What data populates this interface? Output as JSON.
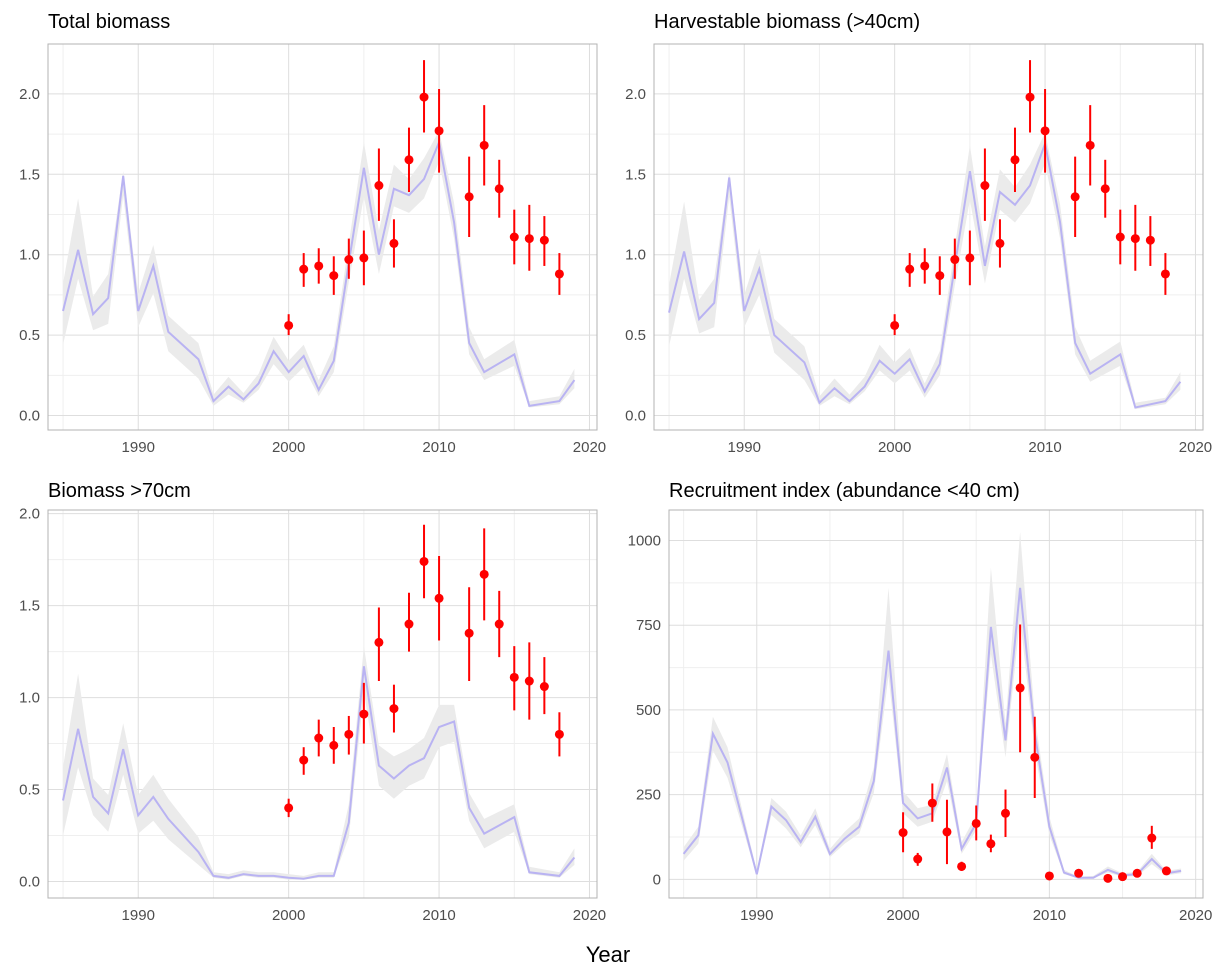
{
  "figure": {
    "xlabel": "Year"
  },
  "colors": {
    "model_line": "#b9b3f2",
    "ribbon": "#ebebeb",
    "observed": "#ff0000",
    "grid_major": "#dedede",
    "grid_minor": "#efefef",
    "panel_border": "#b3b3b3"
  },
  "chart_data": [
    {
      "type": "line",
      "title": "Total biomass",
      "xlabel": "Year",
      "ylabel": "",
      "xlim": [
        1984,
        2020.5
      ],
      "ylim": [
        -0.09,
        2.31
      ],
      "xticks": [
        1990,
        2000,
        2010,
        2020
      ],
      "yticks": [
        0.0,
        0.5,
        1.0,
        1.5,
        2.0
      ],
      "ytick_labels": [
        "0.0",
        "0.5",
        "1.0",
        "1.5",
        "2.0"
      ],
      "grid": true,
      "model": {
        "x": [
          1985,
          1986,
          1987,
          1988,
          1989,
          1990,
          1991,
          1992,
          1994,
          1995,
          1996,
          1997,
          1998,
          1999,
          2000,
          2001,
          2002,
          2003,
          2004,
          2005,
          2006,
          2007,
          2008,
          2009,
          2010,
          2011,
          2012,
          2013,
          2015,
          2016,
          2018,
          2019
        ],
        "y": [
          0.65,
          1.03,
          0.63,
          0.73,
          1.49,
          0.65,
          0.93,
          0.52,
          0.35,
          0.09,
          0.18,
          0.1,
          0.2,
          0.4,
          0.27,
          0.37,
          0.16,
          0.34,
          0.95,
          1.54,
          1.0,
          1.41,
          1.37,
          1.47,
          1.7,
          1.2,
          0.45,
          0.27,
          0.38,
          0.06,
          0.09,
          0.22
        ],
        "lower": [
          0.44,
          0.85,
          0.53,
          0.57,
          1.37,
          0.55,
          0.76,
          0.4,
          0.23,
          0.06,
          0.13,
          0.08,
          0.16,
          0.32,
          0.21,
          0.3,
          0.12,
          0.27,
          0.83,
          1.36,
          0.88,
          1.3,
          1.26,
          1.35,
          1.58,
          1.1,
          0.38,
          0.22,
          0.31,
          0.05,
          0.07,
          0.17
        ],
        "upper": [
          0.82,
          1.35,
          0.74,
          0.88,
          1.52,
          0.76,
          1.06,
          0.62,
          0.45,
          0.13,
          0.24,
          0.14,
          0.26,
          0.49,
          0.34,
          0.44,
          0.22,
          0.43,
          1.07,
          1.7,
          1.15,
          1.56,
          1.47,
          1.6,
          1.77,
          1.32,
          0.55,
          0.35,
          0.47,
          0.09,
          0.12,
          0.29
        ]
      },
      "observed": {
        "x": [
          2000,
          2001,
          2002,
          2003,
          2004,
          2005,
          2006,
          2007,
          2008,
          2009,
          2010,
          2012,
          2013,
          2014,
          2015,
          2016,
          2017,
          2018
        ],
        "y": [
          0.56,
          0.91,
          0.93,
          0.87,
          0.97,
          0.98,
          1.43,
          1.07,
          1.59,
          1.98,
          1.77,
          1.36,
          1.68,
          1.41,
          1.11,
          1.1,
          1.09,
          0.88
        ],
        "lower": [
          0.5,
          0.8,
          0.82,
          0.75,
          0.85,
          0.81,
          1.21,
          0.92,
          1.39,
          1.76,
          1.51,
          1.11,
          1.43,
          1.23,
          0.94,
          0.9,
          0.93,
          0.75
        ],
        "upper": [
          0.63,
          1.01,
          1.04,
          0.99,
          1.1,
          1.15,
          1.66,
          1.22,
          1.79,
          2.21,
          2.03,
          1.61,
          1.93,
          1.59,
          1.28,
          1.31,
          1.24,
          1.01
        ]
      }
    },
    {
      "type": "line",
      "title": "Harvestable biomass (>40cm)",
      "xlabel": "Year",
      "ylabel": "",
      "xlim": [
        1984,
        2020.5
      ],
      "ylim": [
        -0.09,
        2.31
      ],
      "xticks": [
        1990,
        2000,
        2010,
        2020
      ],
      "yticks": [
        0.0,
        0.5,
        1.0,
        1.5,
        2.0
      ],
      "ytick_labels": [
        "0.0",
        "0.5",
        "1.0",
        "1.5",
        "2.0"
      ],
      "grid": true,
      "model": {
        "x": [
          1985,
          1986,
          1987,
          1988,
          1989,
          1990,
          1991,
          1992,
          1994,
          1995,
          1996,
          1997,
          1998,
          1999,
          2000,
          2001,
          2002,
          2003,
          2004,
          2005,
          2006,
          2007,
          2008,
          2009,
          2010,
          2011,
          2012,
          2013,
          2015,
          2016,
          2018,
          2019
        ],
        "y": [
          0.64,
          1.02,
          0.6,
          0.7,
          1.48,
          0.65,
          0.91,
          0.5,
          0.33,
          0.08,
          0.17,
          0.09,
          0.18,
          0.34,
          0.26,
          0.35,
          0.15,
          0.32,
          0.93,
          1.52,
          0.93,
          1.39,
          1.31,
          1.43,
          1.69,
          1.2,
          0.45,
          0.26,
          0.38,
          0.05,
          0.09,
          0.21
        ],
        "lower": [
          0.43,
          0.85,
          0.51,
          0.55,
          1.36,
          0.55,
          0.75,
          0.39,
          0.22,
          0.06,
          0.12,
          0.07,
          0.15,
          0.28,
          0.2,
          0.28,
          0.11,
          0.25,
          0.81,
          1.34,
          0.82,
          1.28,
          1.2,
          1.32,
          1.57,
          1.1,
          0.38,
          0.21,
          0.31,
          0.04,
          0.07,
          0.16
        ],
        "upper": [
          0.81,
          1.33,
          0.72,
          0.85,
          1.51,
          0.75,
          1.04,
          0.6,
          0.43,
          0.12,
          0.23,
          0.13,
          0.24,
          0.44,
          0.33,
          0.42,
          0.2,
          0.4,
          1.05,
          1.68,
          1.05,
          1.53,
          1.42,
          1.56,
          1.76,
          1.31,
          0.55,
          0.34,
          0.46,
          0.08,
          0.11,
          0.27
        ]
      },
      "observed": {
        "x": [
          2000,
          2001,
          2002,
          2003,
          2004,
          2005,
          2006,
          2007,
          2008,
          2009,
          2010,
          2012,
          2013,
          2014,
          2015,
          2016,
          2017,
          2018
        ],
        "y": [
          0.56,
          0.91,
          0.93,
          0.87,
          0.97,
          0.98,
          1.43,
          1.07,
          1.59,
          1.98,
          1.77,
          1.36,
          1.68,
          1.41,
          1.11,
          1.1,
          1.09,
          0.88
        ],
        "lower": [
          0.5,
          0.8,
          0.82,
          0.75,
          0.85,
          0.81,
          1.21,
          0.92,
          1.39,
          1.76,
          1.51,
          1.11,
          1.43,
          1.23,
          0.94,
          0.9,
          0.93,
          0.75
        ],
        "upper": [
          0.63,
          1.01,
          1.04,
          0.99,
          1.1,
          1.15,
          1.66,
          1.22,
          1.79,
          2.21,
          2.03,
          1.61,
          1.93,
          1.59,
          1.28,
          1.31,
          1.24,
          1.01
        ]
      }
    },
    {
      "type": "line",
      "title": "Biomass >70cm",
      "xlabel": "Year",
      "ylabel": "",
      "xlim": [
        1984,
        2020.5
      ],
      "ylim": [
        -0.09,
        2.02
      ],
      "xticks": [
        1990,
        2000,
        2010,
        2020
      ],
      "yticks": [
        0.0,
        0.5,
        1.0,
        1.5,
        2.0
      ],
      "ytick_labels": [
        "0.0",
        "0.5",
        "1.0",
        "1.5",
        "2.0"
      ],
      "grid": true,
      "model": {
        "x": [
          1985,
          1986,
          1987,
          1988,
          1989,
          1990,
          1991,
          1992,
          1994,
          1995,
          1996,
          1997,
          1998,
          1999,
          2000,
          2001,
          2002,
          2003,
          2004,
          2005,
          2006,
          2007,
          2008,
          2009,
          2010,
          2011,
          2012,
          2013,
          2015,
          2016,
          2018,
          2019
        ],
        "y": [
          0.44,
          0.83,
          0.46,
          0.37,
          0.72,
          0.36,
          0.46,
          0.34,
          0.16,
          0.03,
          0.02,
          0.04,
          0.03,
          0.03,
          0.02,
          0.015,
          0.03,
          0.03,
          0.32,
          1.17,
          0.63,
          0.56,
          0.63,
          0.67,
          0.84,
          0.87,
          0.4,
          0.26,
          0.35,
          0.05,
          0.03,
          0.13
        ],
        "lower": [
          0.25,
          0.62,
          0.36,
          0.27,
          0.58,
          0.26,
          0.33,
          0.23,
          0.09,
          0.02,
          0.01,
          0.03,
          0.02,
          0.02,
          0.01,
          0.01,
          0.02,
          0.02,
          0.24,
          1.03,
          0.52,
          0.45,
          0.52,
          0.56,
          0.73,
          0.76,
          0.33,
          0.18,
          0.27,
          0.04,
          0.02,
          0.09
        ],
        "upper": [
          0.62,
          1.13,
          0.56,
          0.47,
          0.86,
          0.47,
          0.58,
          0.45,
          0.24,
          0.05,
          0.04,
          0.06,
          0.05,
          0.05,
          0.04,
          0.03,
          0.05,
          0.05,
          0.42,
          1.28,
          0.74,
          0.68,
          0.72,
          0.78,
          0.96,
          0.96,
          0.48,
          0.34,
          0.42,
          0.08,
          0.05,
          0.18
        ]
      },
      "observed": {
        "x": [
          2000,
          2001,
          2002,
          2003,
          2004,
          2005,
          2006,
          2007,
          2008,
          2009,
          2010,
          2012,
          2013,
          2014,
          2015,
          2016,
          2017,
          2018
        ],
        "y": [
          0.4,
          0.66,
          0.78,
          0.74,
          0.8,
          0.91,
          1.3,
          0.94,
          1.4,
          1.74,
          1.54,
          1.35,
          1.67,
          1.4,
          1.11,
          1.09,
          1.06,
          0.8
        ],
        "lower": [
          0.35,
          0.58,
          0.68,
          0.64,
          0.69,
          0.75,
          1.09,
          0.81,
          1.25,
          1.54,
          1.31,
          1.09,
          1.42,
          1.22,
          0.93,
          0.88,
          0.91,
          0.68
        ],
        "upper": [
          0.45,
          0.73,
          0.88,
          0.84,
          0.9,
          1.08,
          1.49,
          1.07,
          1.57,
          1.94,
          1.77,
          1.6,
          1.92,
          1.58,
          1.28,
          1.3,
          1.22,
          0.92
        ]
      }
    },
    {
      "type": "line",
      "title": "Recruitment index (abundance <40 cm)",
      "xlabel": "Year",
      "ylabel": "",
      "xlim": [
        1984,
        2020.5
      ],
      "ylim": [
        -55,
        1090
      ],
      "xticks": [
        1990,
        2000,
        2010,
        2020
      ],
      "yticks": [
        0,
        250,
        500,
        750,
        1000
      ],
      "ytick_labels": [
        "0",
        "250",
        "500",
        "750",
        "1000"
      ],
      "grid": true,
      "model": {
        "x": [
          1985,
          1986,
          1987,
          1988,
          1989,
          1990,
          1991,
          1992,
          1993,
          1994,
          1995,
          1996,
          1997,
          1998,
          1999,
          2000,
          2001,
          2002,
          2003,
          2004,
          2005,
          2006,
          2007,
          2008,
          2009,
          2010,
          2011,
          2012,
          2013,
          2014,
          2015,
          2016,
          2017,
          2018,
          2019
        ],
        "y": [
          75,
          130,
          430,
          345,
          180,
          15,
          215,
          175,
          110,
          185,
          75,
          120,
          155,
          290,
          675,
          225,
          180,
          195,
          330,
          90,
          165,
          745,
          410,
          860,
          430,
          155,
          20,
          5,
          5,
          28,
          12,
          15,
          60,
          18,
          25
        ],
        "lower": [
          55,
          105,
          380,
          300,
          155,
          10,
          190,
          150,
          95,
          160,
          65,
          105,
          135,
          255,
          600,
          195,
          155,
          170,
          290,
          75,
          145,
          665,
          360,
          770,
          380,
          130,
          15,
          3,
          3,
          20,
          8,
          10,
          45,
          12,
          18
        ],
        "upper": [
          95,
          155,
          480,
          390,
          205,
          25,
          240,
          200,
          130,
          210,
          90,
          140,
          180,
          330,
          860,
          260,
          210,
          220,
          370,
          110,
          190,
          920,
          460,
          1025,
          480,
          185,
          28,
          8,
          10,
          38,
          18,
          22,
          75,
          25,
          32
        ]
      },
      "observed": {
        "x": [
          2000,
          2001,
          2002,
          2003,
          2004,
          2005,
          2006,
          2007,
          2008,
          2009,
          2010,
          2012,
          2014,
          2015,
          2016,
          2017,
          2018
        ],
        "y": [
          138,
          60,
          225,
          140,
          38,
          165,
          105,
          195,
          565,
          360,
          10,
          18,
          3,
          8,
          18,
          122,
          25
        ],
        "lower": [
          80,
          40,
          170,
          45,
          25,
          115,
          80,
          125,
          375,
          240,
          5,
          12,
          1,
          4,
          12,
          90,
          18
        ],
        "upper": [
          198,
          78,
          283,
          235,
          52,
          218,
          132,
          265,
          752,
          480,
          15,
          24,
          5,
          12,
          24,
          158,
          32
        ]
      }
    }
  ]
}
